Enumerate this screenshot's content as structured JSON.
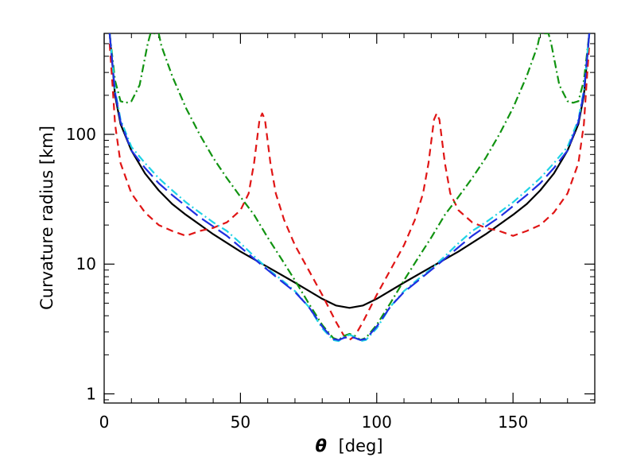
{
  "chart_data": {
    "type": "line",
    "xlabel_symbol": "θ",
    "xlabel_unit": "[deg]",
    "ylabel": "Curvature radius [km]",
    "xlim": [
      0,
      180
    ],
    "ylim": [
      0.85,
      600
    ],
    "yscale": "log",
    "x_ticks": [
      0,
      50,
      100,
      150
    ],
    "x_tick_labels": [
      "0",
      "50",
      "100",
      "150"
    ],
    "y_ticks": [
      1,
      10,
      100
    ],
    "y_tick_labels": [
      "1",
      "10",
      "100"
    ],
    "series": [
      {
        "name": "black solid",
        "color": "#000000",
        "dash": "",
        "points": [
          [
            2,
            600
          ],
          [
            4,
            200
          ],
          [
            6,
            120
          ],
          [
            10,
            75
          ],
          [
            15,
            50
          ],
          [
            20,
            37
          ],
          [
            25,
            29
          ],
          [
            30,
            24
          ],
          [
            40,
            17
          ],
          [
            50,
            12.5
          ],
          [
            60,
            9.5
          ],
          [
            70,
            7.2
          ],
          [
            80,
            5.4
          ],
          [
            85,
            4.8
          ],
          [
            90,
            4.6
          ],
          [
            95,
            4.8
          ],
          [
            100,
            5.4
          ],
          [
            110,
            7.2
          ],
          [
            120,
            9.5
          ],
          [
            130,
            12.5
          ],
          [
            140,
            17
          ],
          [
            150,
            24
          ],
          [
            155,
            29
          ],
          [
            160,
            37
          ],
          [
            165,
            50
          ],
          [
            170,
            75
          ],
          [
            174,
            120
          ],
          [
            176,
            200
          ],
          [
            178,
            600
          ]
        ]
      },
      {
        "name": "red dashed",
        "color": "#e01515",
        "dash": "9,6",
        "points": [
          [
            2,
            500
          ],
          [
            3,
            250
          ],
          [
            4,
            120
          ],
          [
            6,
            60
          ],
          [
            10,
            35
          ],
          [
            15,
            25
          ],
          [
            20,
            20
          ],
          [
            25,
            18
          ],
          [
            30,
            16.5
          ],
          [
            35,
            18
          ],
          [
            40,
            19
          ],
          [
            45,
            21
          ],
          [
            50,
            26
          ],
          [
            53,
            35
          ],
          [
            55,
            60
          ],
          [
            57,
            130
          ],
          [
            58,
            145
          ],
          [
            59,
            130
          ],
          [
            61,
            60
          ],
          [
            63,
            35
          ],
          [
            66,
            22
          ],
          [
            70,
            14
          ],
          [
            75,
            9
          ],
          [
            80,
            5.8
          ],
          [
            85,
            3.6
          ],
          [
            88,
            2.8
          ],
          [
            90,
            2.6
          ],
          [
            92,
            2.8
          ],
          [
            95,
            3.6
          ],
          [
            100,
            5.8
          ],
          [
            105,
            9
          ],
          [
            110,
            14
          ],
          [
            114,
            22
          ],
          [
            117,
            35
          ],
          [
            119,
            60
          ],
          [
            121,
            130
          ],
          [
            122,
            145
          ],
          [
            123,
            130
          ],
          [
            125,
            60
          ],
          [
            127,
            35
          ],
          [
            130,
            26
          ],
          [
            135,
            21
          ],
          [
            140,
            19
          ],
          [
            145,
            18
          ],
          [
            150,
            16.5
          ],
          [
            155,
            18
          ],
          [
            160,
            20
          ],
          [
            165,
            25
          ],
          [
            170,
            35
          ],
          [
            174,
            60
          ],
          [
            176,
            120
          ],
          [
            177,
            250
          ],
          [
            178,
            500
          ]
        ]
      },
      {
        "name": "green dash-dot",
        "color": "#119311",
        "dash": "10,4,2,4",
        "points": [
          [
            2,
            600
          ],
          [
            4,
            260
          ],
          [
            6,
            180
          ],
          [
            8,
            175
          ],
          [
            10,
            180
          ],
          [
            13,
            240
          ],
          [
            16,
            500
          ],
          [
            17,
            600
          ],
          [
            20,
            600
          ],
          [
            21,
            480
          ],
          [
            25,
            280
          ],
          [
            30,
            160
          ],
          [
            35,
            100
          ],
          [
            40,
            66
          ],
          [
            45,
            46
          ],
          [
            50,
            33
          ],
          [
            55,
            24
          ],
          [
            60,
            16
          ],
          [
            65,
            11
          ],
          [
            70,
            7.5
          ],
          [
            75,
            5
          ],
          [
            80,
            3.4
          ],
          [
            84,
            2.7
          ],
          [
            86,
            2.6
          ],
          [
            88,
            2.8
          ],
          [
            90,
            2.9
          ],
          [
            92,
            2.8
          ],
          [
            94,
            2.6
          ],
          [
            96,
            2.7
          ],
          [
            100,
            3.4
          ],
          [
            105,
            5
          ],
          [
            110,
            7.5
          ],
          [
            115,
            11
          ],
          [
            120,
            16
          ],
          [
            125,
            24
          ],
          [
            130,
            33
          ],
          [
            135,
            46
          ],
          [
            140,
            66
          ],
          [
            145,
            100
          ],
          [
            150,
            160
          ],
          [
            155,
            280
          ],
          [
            159,
            480
          ],
          [
            160,
            600
          ],
          [
            163,
            600
          ],
          [
            164,
            500
          ],
          [
            167,
            240
          ],
          [
            170,
            180
          ],
          [
            172,
            175
          ],
          [
            174,
            180
          ],
          [
            176,
            260
          ],
          [
            178,
            600
          ]
        ]
      },
      {
        "name": "cyan dash-dot",
        "color": "#1fd3e6",
        "dash": "10,4,2,4",
        "points": [
          [
            2,
            600
          ],
          [
            4,
            220
          ],
          [
            6,
            130
          ],
          [
            10,
            80
          ],
          [
            15,
            60
          ],
          [
            20,
            46
          ],
          [
            25,
            37
          ],
          [
            30,
            30
          ],
          [
            35,
            25
          ],
          [
            40,
            21
          ],
          [
            45,
            18
          ],
          [
            50,
            14.5
          ],
          [
            55,
            11.5
          ],
          [
            60,
            9.2
          ],
          [
            65,
            7.6
          ],
          [
            70,
            6.2
          ],
          [
            75,
            4.7
          ],
          [
            80,
            3.2
          ],
          [
            84,
            2.6
          ],
          [
            86,
            2.55
          ],
          [
            88,
            2.75
          ],
          [
            90,
            2.85
          ],
          [
            92,
            2.75
          ],
          [
            94,
            2.55
          ],
          [
            96,
            2.6
          ],
          [
            100,
            3.2
          ],
          [
            105,
            4.7
          ],
          [
            110,
            6.2
          ],
          [
            115,
            7.6
          ],
          [
            120,
            9.2
          ],
          [
            125,
            11.5
          ],
          [
            130,
            14.5
          ],
          [
            135,
            18
          ],
          [
            140,
            21
          ],
          [
            145,
            25
          ],
          [
            150,
            30
          ],
          [
            155,
            37
          ],
          [
            160,
            46
          ],
          [
            165,
            60
          ],
          [
            170,
            80
          ],
          [
            174,
            130
          ],
          [
            176,
            220
          ],
          [
            178,
            600
          ]
        ]
      },
      {
        "name": "blue long dashed",
        "color": "#1f2fe0",
        "dash": "18,7",
        "points": [
          [
            2,
            600
          ],
          [
            4,
            210
          ],
          [
            6,
            125
          ],
          [
            10,
            75
          ],
          [
            15,
            55
          ],
          [
            20,
            42
          ],
          [
            25,
            34
          ],
          [
            30,
            28
          ],
          [
            35,
            23
          ],
          [
            40,
            19.5
          ],
          [
            45,
            16.5
          ],
          [
            50,
            13.5
          ],
          [
            55,
            11
          ],
          [
            60,
            9
          ],
          [
            65,
            7.4
          ],
          [
            70,
            6.1
          ],
          [
            75,
            4.7
          ],
          [
            80,
            3.3
          ],
          [
            84,
            2.65
          ],
          [
            86,
            2.6
          ],
          [
            88,
            2.7
          ],
          [
            90,
            2.75
          ],
          [
            92,
            2.7
          ],
          [
            94,
            2.6
          ],
          [
            96,
            2.65
          ],
          [
            100,
            3.3
          ],
          [
            105,
            4.7
          ],
          [
            110,
            6.1
          ],
          [
            115,
            7.4
          ],
          [
            120,
            9
          ],
          [
            125,
            11
          ],
          [
            130,
            13.5
          ],
          [
            135,
            16.5
          ],
          [
            140,
            19.5
          ],
          [
            145,
            23
          ],
          [
            150,
            28
          ],
          [
            155,
            34
          ],
          [
            160,
            42
          ],
          [
            165,
            55
          ],
          [
            170,
            75
          ],
          [
            174,
            125
          ],
          [
            176,
            210
          ],
          [
            178,
            600
          ]
        ]
      }
    ]
  }
}
